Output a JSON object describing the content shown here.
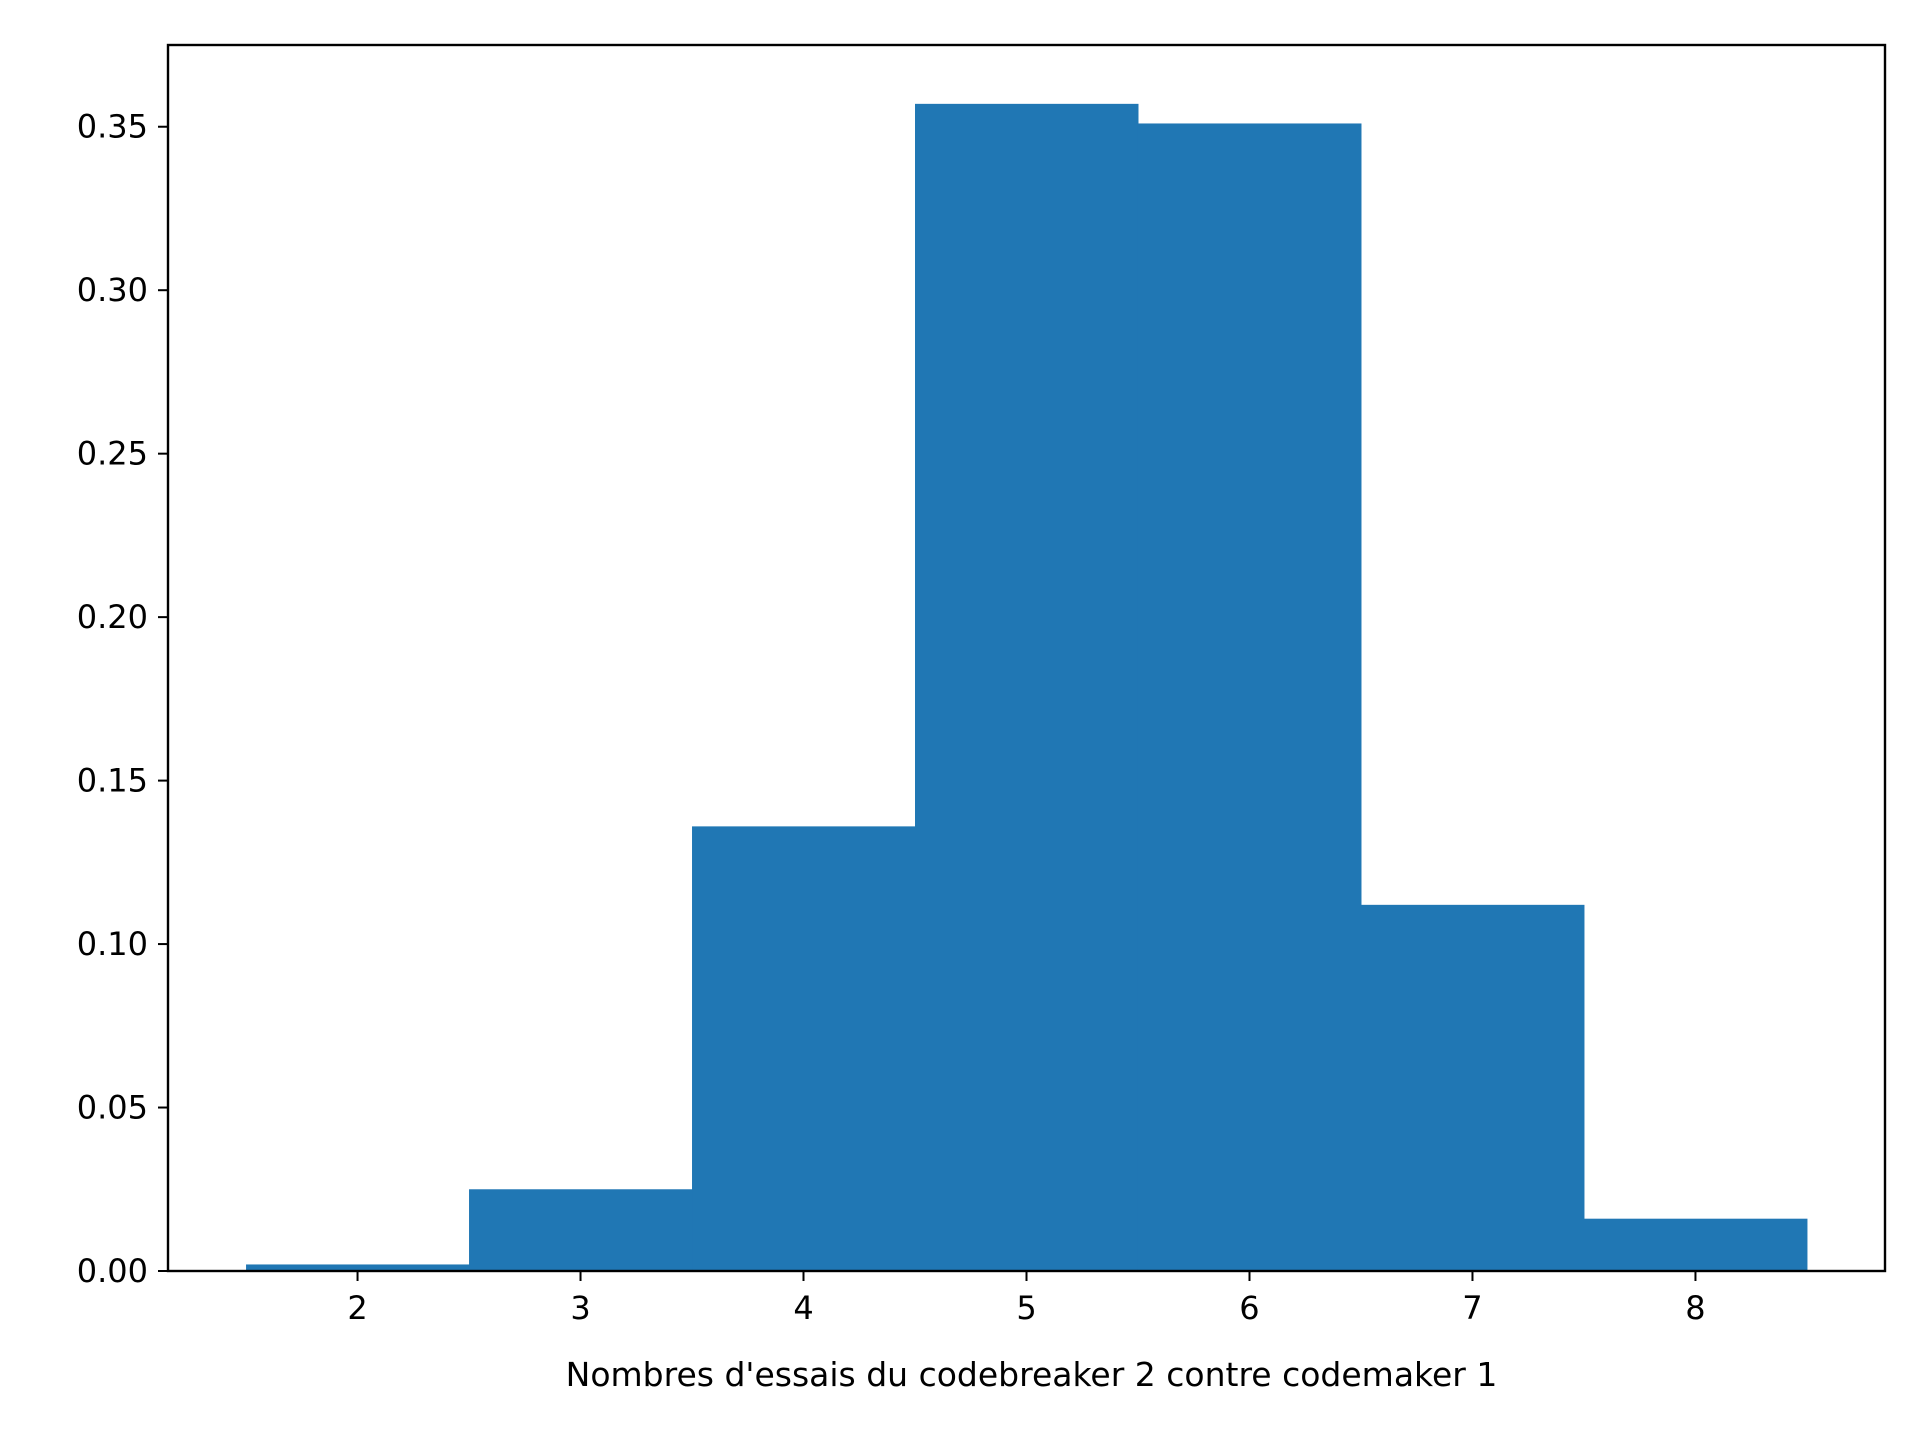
{
  "chart_data": {
    "type": "bar",
    "title": "",
    "xlabel": "Nombres d'essais du codebreaker 2 contre codemaker 1",
    "ylabel": "",
    "bins": [
      {
        "x": 2,
        "value": 0.002
      },
      {
        "x": 3,
        "value": 0.025
      },
      {
        "x": 4,
        "value": 0.136
      },
      {
        "x": 5,
        "value": 0.357
      },
      {
        "x": 6,
        "value": 0.351
      },
      {
        "x": 7,
        "value": 0.112
      },
      {
        "x": 8,
        "value": 0.016
      }
    ],
    "bin_width": 1,
    "xlim": [
      1.15,
      8.85
    ],
    "ylim": [
      0,
      0.375
    ],
    "xticks": [
      {
        "value": 2,
        "label": "2"
      },
      {
        "value": 3,
        "label": "3"
      },
      {
        "value": 4,
        "label": "4"
      },
      {
        "value": 5,
        "label": "5"
      },
      {
        "value": 6,
        "label": "6"
      },
      {
        "value": 7,
        "label": "7"
      },
      {
        "value": 8,
        "label": "8"
      }
    ],
    "yticks": [
      {
        "value": 0.0,
        "label": "0.00"
      },
      {
        "value": 0.05,
        "label": "0.05"
      },
      {
        "value": 0.1,
        "label": "0.10"
      },
      {
        "value": 0.15,
        "label": "0.15"
      },
      {
        "value": 0.2,
        "label": "0.20"
      },
      {
        "value": 0.25,
        "label": "0.25"
      },
      {
        "value": 0.3,
        "label": "0.30"
      },
      {
        "value": 0.35,
        "label": "0.35"
      }
    ],
    "grid": false,
    "bar_color": "#2077b4",
    "axis_color": "#000000"
  }
}
